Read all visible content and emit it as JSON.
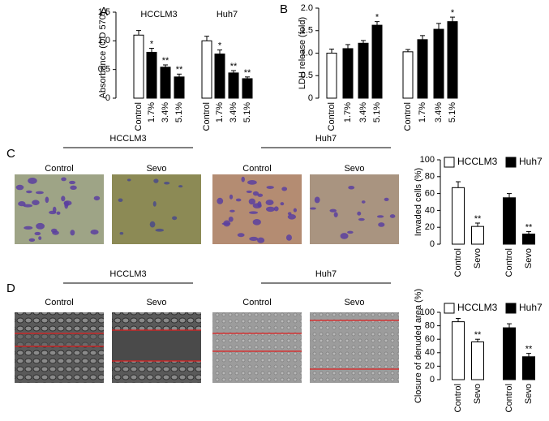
{
  "panel_labels": [
    "A",
    "B",
    "C",
    "D"
  ],
  "chart_data": [
    {
      "type": "bar",
      "y_label": "Absorbance (OD 570)",
      "groups": [
        "HCCLM3",
        "Huh7"
      ],
      "categories": [
        "Control",
        "1.7%",
        "3.4%",
        "5.1%",
        "Control",
        "1.7%",
        "3.4%",
        "5.1%"
      ],
      "values": [
        1.1,
        0.8,
        0.54,
        0.37,
        1.0,
        0.77,
        0.44,
        0.34
      ],
      "errors": [
        0.08,
        0.07,
        0.04,
        0.05,
        0.08,
        0.07,
        0.04,
        0.03
      ],
      "colors": [
        "#ffffff",
        "#000000",
        "#000000",
        "#000000",
        "#ffffff",
        "#000000",
        "#000000",
        "#000000"
      ],
      "significance": [
        null,
        "*",
        "**",
        "**",
        null,
        "*",
        "**",
        "**"
      ],
      "ylim": [
        0,
        1.5
      ],
      "yticks": [
        0,
        0.5,
        {
          "value": 1,
          "label": "1.0"
        },
        1.5
      ]
    },
    {
      "type": "bar",
      "y_label": "LDH release (fold)",
      "categories": [
        "Control",
        "1.7%",
        "3.4%",
        "5.1%",
        "Control",
        "1.7%",
        "3.4%",
        "5.1%"
      ],
      "values": [
        1.0,
        1.1,
        1.22,
        1.62,
        1.03,
        1.3,
        1.53,
        1.7
      ],
      "errors": [
        0.09,
        0.09,
        0.06,
        0.08,
        0.05,
        0.09,
        0.13,
        0.1
      ],
      "colors": [
        "#ffffff",
        "#000000",
        "#000000",
        "#000000",
        "#ffffff",
        "#000000",
        "#000000",
        "#000000"
      ],
      "significance": [
        null,
        null,
        null,
        "*",
        null,
        null,
        null,
        "*"
      ],
      "ylim": [
        0,
        2
      ],
      "yticks": [
        0,
        0.5,
        {
          "value": 1,
          "label": "1.0"
        },
        1.5,
        {
          "value": 2,
          "label": "2.0"
        }
      ]
    },
    {
      "type": "grouped-bar",
      "y_label": "Invaded cells (%)",
      "categories": [
        "Control",
        "Sevo"
      ],
      "legend": "top",
      "series": [
        {
          "name": "HCCLM3",
          "color": "#ffffff",
          "values": [
            67,
            21
          ],
          "errors": [
            7,
            4
          ],
          "significance": [
            null,
            "**"
          ]
        },
        {
          "name": "Huh7",
          "color": "#000000",
          "values": [
            55,
            12
          ],
          "errors": [
            5,
            3
          ],
          "significance": [
            null,
            "**"
          ]
        }
      ],
      "ylim": [
        0,
        100
      ],
      "yticks": [
        0,
        20,
        40,
        60,
        80,
        100
      ]
    },
    {
      "type": "grouped-bar",
      "y_label": "Closure of denuded area (%)",
      "categories": [
        "Control",
        "Sevo"
      ],
      "legend": "top",
      "series": [
        {
          "name": "HCCLM3",
          "color": "#ffffff",
          "values": [
            86,
            56
          ],
          "errors": [
            5,
            4
          ],
          "significance": [
            null,
            "**"
          ]
        },
        {
          "name": "Huh7",
          "color": "#000000",
          "values": [
            77,
            34
          ],
          "errors": [
            6,
            5
          ],
          "significance": [
            null,
            "**"
          ]
        }
      ],
      "ylim": [
        0,
        100
      ],
      "yticks": [
        0,
        20,
        40,
        60,
        80,
        100
      ]
    }
  ],
  "micrographs": [
    {
      "groups": [
        {
          "title": "HCCLM3",
          "conditions": [
            "Control",
            "Sevo"
          ]
        },
        {
          "title": "Huh7",
          "conditions": [
            "Control",
            "Sevo"
          ]
        }
      ]
    },
    {
      "groups": [
        {
          "title": "HCCLM3",
          "conditions": [
            "Control",
            "Sevo"
          ]
        },
        {
          "title": "Huh7",
          "conditions": [
            "Control",
            "Sevo"
          ]
        }
      ]
    }
  ]
}
